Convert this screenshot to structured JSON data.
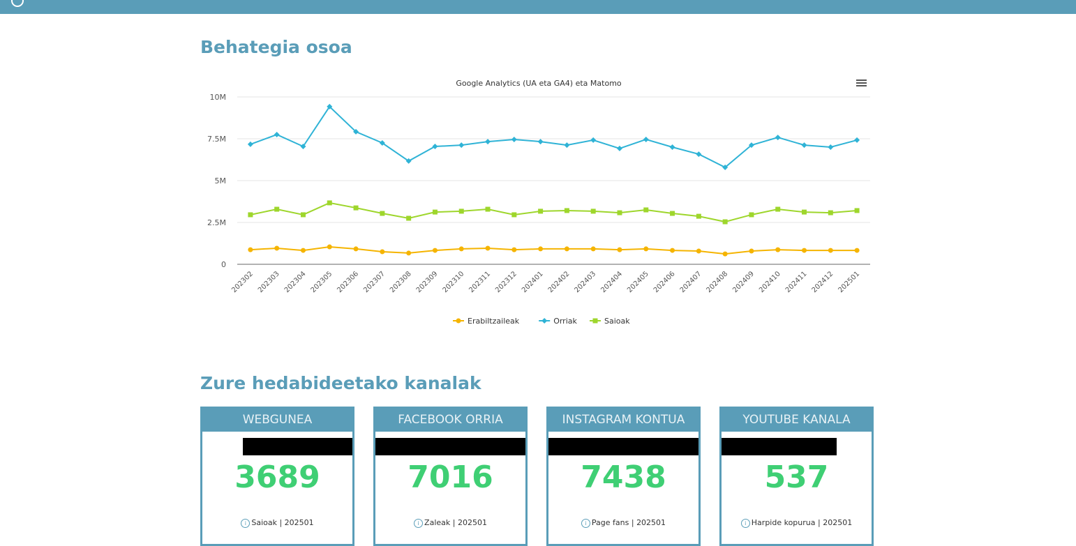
{
  "sections": {
    "overview_title": "Behategia osoa",
    "channels_title": "Zure hedabideetako kanalak"
  },
  "chart_data": {
    "type": "line",
    "title": "Google Analytics (UA eta GA4) eta Matomo",
    "xlabel": "",
    "ylabel": "",
    "ylim": [
      0,
      10000000
    ],
    "yticks": [
      {
        "v": 0,
        "label": "0"
      },
      {
        "v": 2500000,
        "label": "2.5M"
      },
      {
        "v": 5000000,
        "label": "5M"
      },
      {
        "v": 7500000,
        "label": "7.5M"
      },
      {
        "v": 10000000,
        "label": "10M"
      }
    ],
    "categories": [
      "202302",
      "202303",
      "202304",
      "202305",
      "202306",
      "202307",
      "202308",
      "202309",
      "202310",
      "202311",
      "202312",
      "202401",
      "202402",
      "202403",
      "202404",
      "202405",
      "202406",
      "202407",
      "202408",
      "202409",
      "202410",
      "202411",
      "202412",
      "202501"
    ],
    "legend_position": "bottom",
    "grid": true,
    "series": [
      {
        "name": "Erabiltzaileak",
        "color": "#f5b400",
        "marker": "circle",
        "values": [
          870000,
          960000,
          830000,
          1040000,
          920000,
          750000,
          670000,
          830000,
          920000,
          960000,
          870000,
          920000,
          920000,
          920000,
          870000,
          920000,
          830000,
          790000,
          620000,
          790000,
          870000,
          830000,
          830000,
          830000
        ]
      },
      {
        "name": "Orriak",
        "color": "#2fb3d6",
        "marker": "diamond",
        "values": [
          7170000,
          7750000,
          7040000,
          9420000,
          7920000,
          7250000,
          6170000,
          7040000,
          7120000,
          7330000,
          7460000,
          7330000,
          7120000,
          7420000,
          6920000,
          7460000,
          7000000,
          6580000,
          5790000,
          7120000,
          7580000,
          7120000,
          7000000,
          7420000
        ]
      },
      {
        "name": "Saioak",
        "color": "#9ed62c",
        "marker": "square",
        "values": [
          2960000,
          3290000,
          2960000,
          3670000,
          3370000,
          3040000,
          2750000,
          3120000,
          3170000,
          3290000,
          2960000,
          3170000,
          3210000,
          3170000,
          3080000,
          3250000,
          3040000,
          2870000,
          2540000,
          2960000,
          3290000,
          3120000,
          3080000,
          3210000
        ]
      }
    ]
  },
  "cards": [
    {
      "title": "WEBGUNEA",
      "value": "3689",
      "caption": "Saioak | 202501"
    },
    {
      "title": "FACEBOOK ORRIA",
      "value": "7016",
      "caption": "Zaleak | 202501"
    },
    {
      "title": "INSTAGRAM KONTUA",
      "value": "7438",
      "caption": "Page fans | 202501"
    },
    {
      "title": "YOUTUBE KANALA",
      "value": "537",
      "caption": "Harpide kopurua | 202501"
    }
  ]
}
